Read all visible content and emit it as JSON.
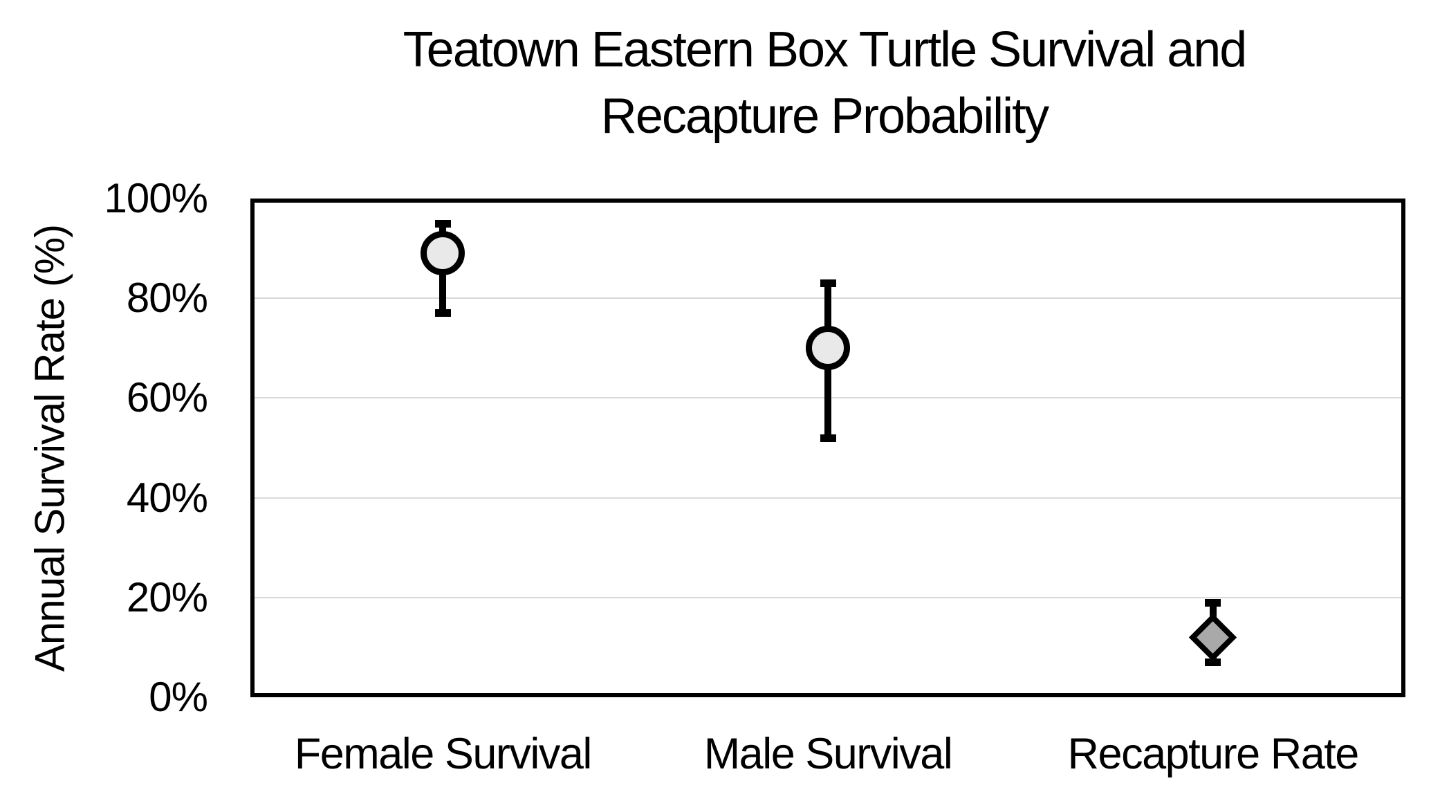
{
  "chart_data": {
    "type": "scatter",
    "title": "Teatown Eastern Box Turtle Survival and Recapture Probability",
    "title_lines": [
      "Teatown Eastern Box Turtle Survival and",
      "Recapture Probability"
    ],
    "xlabel": "",
    "ylabel": "Annual Survival Rate (%)",
    "ylim": [
      0,
      100
    ],
    "yticks": [
      0,
      20,
      40,
      60,
      80,
      100
    ],
    "ytick_labels": [
      "0%",
      "20%",
      "40%",
      "60%",
      "80%",
      "100%"
    ],
    "grid": "horizontal",
    "legend": "none",
    "categories": [
      "Female Survival",
      "Male Survival",
      "Recapture Rate"
    ],
    "points": [
      {
        "category": "Female Survival",
        "value": 89,
        "ci_low": 77,
        "ci_high": 95,
        "marker": "circle",
        "fill": "#e9e9e9"
      },
      {
        "category": "Male Survival",
        "value": 70,
        "ci_low": 52,
        "ci_high": 83,
        "marker": "circle",
        "fill": "#e9e9e9"
      },
      {
        "category": "Recapture Rate",
        "value": 12,
        "ci_low": 7,
        "ci_high": 19,
        "marker": "diamond",
        "fill": "#a9a9a9"
      }
    ],
    "colors": {
      "axis_frame": "#000000",
      "gridline": "#d9d9d9",
      "error_bar": "#000000",
      "marker_stroke": "#000000",
      "circle_fill": "#e9e9e9",
      "diamond_fill": "#a9a9a9",
      "background": "#ffffff",
      "text": "#000000"
    }
  }
}
